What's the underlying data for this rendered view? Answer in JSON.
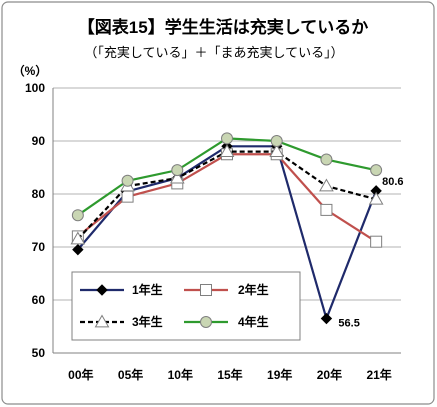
{
  "chart_data": {
    "type": "line",
    "title": "【図表15】学生生活は充実しているか",
    "subtitle": "（「充実している」＋「まあ充実している」）",
    "ylabel": "（%）",
    "xlabel": "",
    "categories": [
      "00年",
      "05年",
      "10年",
      "15年",
      "19年",
      "20年",
      "21年"
    ],
    "ylim": [
      50,
      100
    ],
    "yticks": [
      50,
      60,
      70,
      80,
      90,
      100
    ],
    "grid": true,
    "legend_position": "bottom-left inside plot",
    "series": [
      {
        "name": "1年生",
        "color": "#1f2a6b",
        "marker": "diamond",
        "marker_fill": "#000000",
        "marker_stroke": "#000000",
        "dashed": false,
        "values": [
          69.5,
          80.5,
          83.0,
          89.0,
          89.0,
          56.5,
          80.6
        ]
      },
      {
        "name": "2年生",
        "color": "#c0504d",
        "marker": "square",
        "marker_fill": "#ffffff",
        "marker_stroke": "#7f7f7f",
        "dashed": false,
        "values": [
          72.0,
          79.5,
          82.0,
          87.5,
          87.5,
          77.0,
          71.0
        ]
      },
      {
        "name": "3年生",
        "color": "#000000",
        "marker": "triangle",
        "marker_fill": "#ffffff",
        "marker_stroke": "#7f7f7f",
        "dashed": true,
        "values": [
          71.5,
          81.5,
          83.0,
          88.0,
          88.0,
          81.5,
          79.0
        ]
      },
      {
        "name": "4年生",
        "color": "#2e9a2e",
        "marker": "circle",
        "marker_fill": "#c9d6b3",
        "marker_stroke": "#7f7f7f",
        "dashed": false,
        "values": [
          76.0,
          82.5,
          84.5,
          90.5,
          90.0,
          86.5,
          84.5
        ]
      }
    ],
    "data_labels": [
      {
        "series": 0,
        "category": 6,
        "value": 80.6,
        "text": "80.6"
      },
      {
        "series": 0,
        "category": 5,
        "value": 56.5,
        "text": "56.5"
      }
    ]
  }
}
